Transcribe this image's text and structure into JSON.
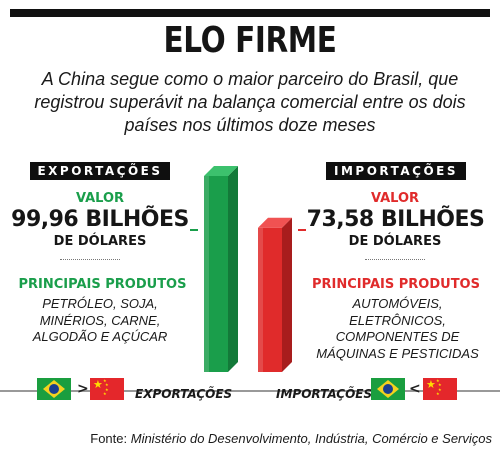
{
  "title": "ELO FIRME",
  "subtitle": "A China segue como o maior parceiro do Brasil, que registrou superávit na balança comercial entre os dois países nos últimos doze meses",
  "exports": {
    "header": "EXPORTAÇÕES",
    "value_label": "VALOR",
    "value": "99,96 BILHÕES",
    "unit": "DE DÓLARES",
    "products_label": "PRINCIPAIS PRODUTOS",
    "products": "PETRÓLEO, SOJA, MINÉRIOS, CARNE, ALGODÃO E AÇÚCAR",
    "flow_from": "Brasil",
    "flow_to": "China",
    "flow_symbol": ">",
    "bar_label": "EXPORTAÇÕES",
    "color": "#1a9e4b"
  },
  "imports": {
    "header": "IMPORTAÇÕES",
    "value_label": "VALOR",
    "value": "73,58 BILHÕES",
    "unit": "DE DÓLARES",
    "products_label": "PRINCIPAIS PRODUTOS",
    "products": "AUTOMÓVEIS, ELETRÔNICOS, COMPONENTES DE MÁQUINAS E PESTICIDAS",
    "flow_from": "Brasil",
    "flow_to": "China",
    "flow_symbol": "<",
    "bar_label": "IMPORTAÇÕES",
    "color": "#e02b2b"
  },
  "chart_data": {
    "type": "bar",
    "categories": [
      "EXPORTAÇÕES",
      "IMPORTAÇÕES"
    ],
    "values": [
      99.96,
      73.58
    ],
    "ylim": [
      0,
      99.96
    ]
  },
  "source": {
    "prefix": "Fonte:",
    "text": "Ministério do Desenvolvimento, Indústria, Comércio e Serviços"
  },
  "icons": {
    "brazil_flag": "brazil-flag-icon",
    "china_flag": "china-flag-icon"
  }
}
